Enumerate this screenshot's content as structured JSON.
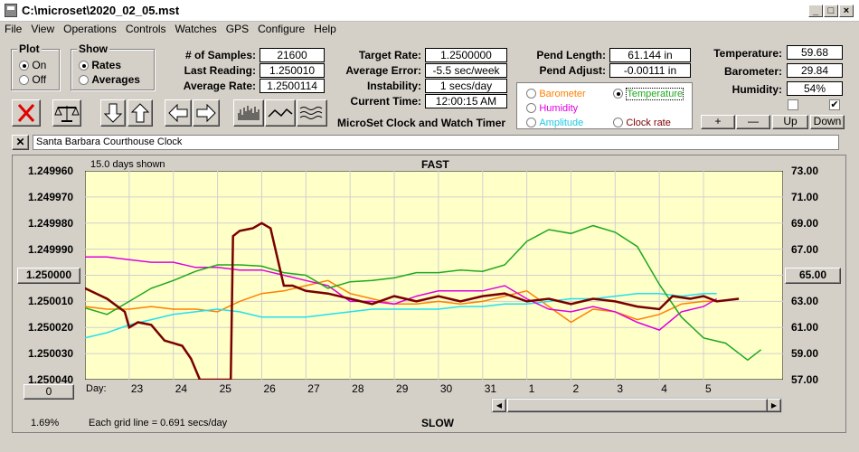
{
  "window": {
    "title": "C:\\microset\\2020_02_05.mst"
  },
  "menu": [
    "File",
    "View",
    "Operations",
    "Controls",
    "Watches",
    "GPS",
    "Configure",
    "Help"
  ],
  "plot_group": {
    "legend": "Plot",
    "on": "On",
    "off": "Off",
    "selected": "On"
  },
  "show_group": {
    "legend": "Show",
    "rates": "Rates",
    "averages": "Averages",
    "selected": "Rates"
  },
  "stats": {
    "samples_label": "# of Samples:",
    "samples": "21600",
    "last_label": "Last Reading:",
    "last": "1.250010",
    "avg_rate_label": "Average Rate:",
    "avg_rate": "1.2500114",
    "target_label": "Target Rate:",
    "target": "1.2500000",
    "avg_err_label": "Average Error:",
    "avg_err": "-5.5 sec/week",
    "instab_label": "Instability:",
    "instab": "1 secs/day",
    "time_label": "Current Time:",
    "time": "12:00:15 AM",
    "pend_len_label": "Pend Length:",
    "pend_len": "61.144 in",
    "pend_adj_label": "Pend Adjust:",
    "pend_adj": "-0.00111 in",
    "temp_label": "Temperature:",
    "temp": "59.68",
    "baro_label": "Barometer:",
    "baro": "29.84",
    "hum_label": "Humidity:",
    "hum": "54%"
  },
  "app_name": "MicroSet Clock and Watch Timer",
  "sensor_options": {
    "barometer": "Barometer",
    "temperature": "Temperature",
    "humidity": "Humidity",
    "amplitude": "Amplitude",
    "clock_rate": "Clock rate",
    "selected": "Temperature"
  },
  "adjust_buttons": {
    "plus": "+",
    "minus": "—",
    "up": "Up",
    "down": "Down"
  },
  "clock_name": "Santa Barbara Courthouse Clock",
  "colors": {
    "clock": "#7a0000",
    "temperature": "#1ea81e",
    "humidity": "#e000e0",
    "amplitude": "#20e0f0",
    "barometer": "#ff8000",
    "plot_bg": "#ffffc8"
  },
  "chart": {
    "days_shown": "15.0 days shown",
    "top_label": "FAST",
    "bottom_label": "SLOW",
    "left_button": "1.250000",
    "right_button": "65.00",
    "zero_button": "0",
    "percent": "1.69%",
    "grid_note": "Each grid line = 0.691 secs/day",
    "day_prefix": "Day:"
  },
  "chart_data": {
    "type": "line",
    "x_label": "Day",
    "x_ticks": [
      "23",
      "24",
      "25",
      "26",
      "27",
      "28",
      "29",
      "30",
      "31",
      "1",
      "2",
      "3",
      "4",
      "5"
    ],
    "y_left_ticks": [
      "1.249960",
      "1.249970",
      "1.249980",
      "1.249990",
      "1.250000",
      "1.250010",
      "1.250020",
      "1.250030",
      "1.250040"
    ],
    "y_left_range": [
      1.24996,
      1.25004
    ],
    "y_right_ticks": [
      "73.00",
      "71.00",
      "69.00",
      "67.00",
      "65.00",
      "63.00",
      "61.00",
      "59.00",
      "57.00"
    ],
    "y_right_range": [
      57,
      73
    ],
    "grid": true,
    "series": [
      {
        "name": "Clock rate",
        "color": "#7a0000",
        "axis": "left",
        "x": [
          22.0,
          22.5,
          22.9,
          23.0,
          23.2,
          23.5,
          23.8,
          24.0,
          24.2,
          24.4,
          24.6,
          25.0,
          25.3,
          25.35,
          25.5,
          25.8,
          26.0,
          26.2,
          26.5,
          26.7,
          27.0,
          27.5,
          28.0,
          28.5,
          29.0,
          29.5,
          30.0,
          30.5,
          31.0,
          31.5,
          32.0,
          32.5,
          33.0,
          33.5,
          34.0,
          34.5,
          35.0,
          35.3,
          35.7,
          36.0,
          36.3,
          36.8
        ],
        "y": [
          1.250005,
          1.250009,
          1.250014,
          1.25002,
          1.250018,
          1.250019,
          1.250025,
          1.250026,
          1.250027,
          1.250032,
          1.25004,
          1.25004,
          1.25004,
          1.249985,
          1.249983,
          1.249982,
          1.24998,
          1.249982,
          1.250004,
          1.250004,
          1.250006,
          1.250007,
          1.250009,
          1.250011,
          1.250008,
          1.25001,
          1.250008,
          1.25001,
          1.250008,
          1.250007,
          1.25001,
          1.250009,
          1.250011,
          1.250009,
          1.25001,
          1.250012,
          1.250013,
          1.250008,
          1.250009,
          1.250008,
          1.25001,
          1.250009
        ]
      },
      {
        "name": "Temperature",
        "color": "#1ea81e",
        "axis": "right",
        "x": [
          22.0,
          22.5,
          23.0,
          23.5,
          24.0,
          24.5,
          25.0,
          25.5,
          26.0,
          26.5,
          27.0,
          27.5,
          28.0,
          28.5,
          29.0,
          29.5,
          30.0,
          30.5,
          31.0,
          31.5,
          32.0,
          32.5,
          33.0,
          33.5,
          34.0,
          34.5,
          35.0,
          35.5,
          36.0,
          36.5,
          37.0,
          37.3
        ],
        "y": [
          62.5,
          62.0,
          63.0,
          64.0,
          64.6,
          65.3,
          65.8,
          65.8,
          65.7,
          65.2,
          65.0,
          64.0,
          64.5,
          64.6,
          64.8,
          65.2,
          65.2,
          65.4,
          65.3,
          65.8,
          67.6,
          68.5,
          68.2,
          68.8,
          68.3,
          67.2,
          64.3,
          61.8,
          60.2,
          59.8,
          58.5,
          59.3
        ]
      },
      {
        "name": "Humidity",
        "color": "#e000e0",
        "axis": "left",
        "x": [
          22.0,
          22.5,
          23.0,
          23.5,
          24.0,
          24.5,
          25.0,
          25.5,
          26.0,
          26.5,
          27.0,
          27.5,
          28.0,
          28.5,
          29.0,
          29.5,
          30.0,
          30.5,
          31.0,
          31.5,
          32.0,
          32.5,
          33.0,
          33.5,
          34.0,
          34.5,
          35.0,
          35.5,
          36.0,
          36.3
        ],
        "y": [
          1.249993,
          1.249993,
          1.249994,
          1.249995,
          1.249995,
          1.249997,
          1.249997,
          1.249998,
          1.249998,
          1.25,
          1.250002,
          1.250004,
          1.25001,
          1.25001,
          1.250011,
          1.250008,
          1.250006,
          1.250006,
          1.250006,
          1.250004,
          1.250009,
          1.250013,
          1.250014,
          1.250012,
          1.250014,
          1.250018,
          1.250021,
          1.250014,
          1.250012,
          1.250009
        ]
      },
      {
        "name": "Amplitude",
        "color": "#20e0f0",
        "axis": "left",
        "x": [
          22.0,
          22.5,
          23.0,
          23.5,
          24.0,
          24.5,
          25.0,
          25.5,
          26.0,
          26.5,
          27.0,
          27.5,
          28.0,
          28.5,
          29.0,
          29.5,
          30.0,
          30.5,
          31.0,
          31.5,
          32.0,
          32.5,
          33.0,
          33.5,
          34.0,
          34.5,
          35.0,
          35.5,
          36.0,
          36.3
        ],
        "y": [
          1.250024,
          1.250022,
          1.250019,
          1.250017,
          1.250015,
          1.250014,
          1.250013,
          1.250014,
          1.250016,
          1.250016,
          1.250016,
          1.250015,
          1.250014,
          1.250013,
          1.250013,
          1.250013,
          1.250013,
          1.250012,
          1.250012,
          1.250011,
          1.250011,
          1.25001,
          1.250009,
          1.250009,
          1.250008,
          1.250007,
          1.250007,
          1.250008,
          1.250007,
          1.250007
        ]
      },
      {
        "name": "Barometer",
        "color": "#ff8000",
        "axis": "left",
        "x": [
          22.0,
          22.5,
          23.0,
          23.5,
          24.0,
          24.5,
          25.0,
          25.5,
          26.0,
          26.5,
          27.0,
          27.5,
          28.0,
          28.5,
          29.0,
          29.5,
          30.0,
          30.5,
          31.0,
          31.5,
          32.0,
          32.5,
          33.0,
          33.5,
          34.0,
          34.5,
          35.0,
          35.5,
          36.0,
          36.3
        ],
        "y": [
          1.250012,
          1.250013,
          1.250013,
          1.250012,
          1.250013,
          1.250013,
          1.250014,
          1.25001,
          1.250007,
          1.250006,
          1.250004,
          1.250002,
          1.250007,
          1.250009,
          1.250011,
          1.250011,
          1.25001,
          1.250011,
          1.25001,
          1.250008,
          1.250006,
          1.250012,
          1.250018,
          1.250013,
          1.250014,
          1.250017,
          1.250015,
          1.250011,
          1.25001,
          1.25001
        ]
      }
    ]
  }
}
